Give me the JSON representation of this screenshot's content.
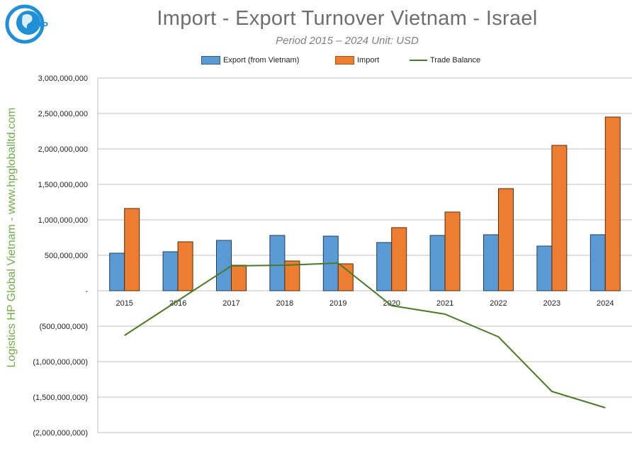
{
  "page": {
    "logo_text": "HP",
    "side_text": "Logistics HP Global Vietnam - www.hpgloballtd.com"
  },
  "colors": {
    "export": "#5b9bd5",
    "import": "#ed7d31",
    "balance": "#4a7a26",
    "side_text": "#70ad47",
    "title": "#6e6e6e"
  },
  "chart_data": {
    "type": "bar",
    "title": "Import - Export Turnover Vietnam - Israel",
    "subtitle": "Period 2015 – 2024  Unit: USD",
    "categories": [
      "2015",
      "2016",
      "2017",
      "2018",
      "2019",
      "2020",
      "2021",
      "2022",
      "2023",
      "2024"
    ],
    "series": [
      {
        "name": "Export (from Vietnam)",
        "type": "bar",
        "values": [
          530000000,
          550000000,
          710000000,
          780000000,
          770000000,
          680000000,
          780000000,
          790000000,
          630000000,
          790000000
        ]
      },
      {
        "name": "Import",
        "type": "bar",
        "values": [
          1160000000,
          690000000,
          360000000,
          420000000,
          380000000,
          890000000,
          1110000000,
          1440000000,
          2050000000,
          2450000000
        ]
      },
      {
        "name": "Trade Balance",
        "type": "line",
        "values": [
          -630000000,
          -140000000,
          350000000,
          360000000,
          390000000,
          -210000000,
          -330000000,
          -650000000,
          -1420000000,
          -1650000000
        ]
      }
    ],
    "ylim": [
      -2000000000,
      3000000000
    ],
    "yticks": [
      3000000000,
      2500000000,
      2000000000,
      1500000000,
      1000000000,
      500000000,
      0,
      -500000000,
      -1000000000,
      -1500000000,
      -2000000000
    ],
    "ytick_labels": [
      "3,000,000,000",
      "2,500,000,000",
      "2,000,000,000",
      "1,500,000,000",
      "1,000,000,000",
      "500,000,000",
      "-",
      "(500,000,000)",
      "(1,000,000,000)",
      "(1,500,000,000)",
      "(2,000,000,000)"
    ],
    "grid": true,
    "legend_position": "top-center",
    "xlabel": "",
    "ylabel": ""
  }
}
